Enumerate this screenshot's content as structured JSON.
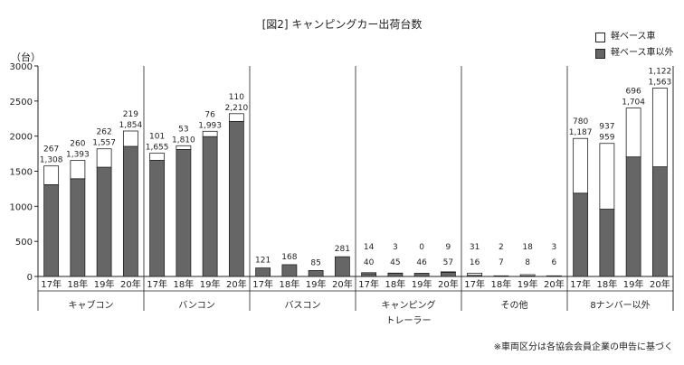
{
  "chart_data": {
    "type": "bar",
    "stacked": true,
    "title": "[図2] キャンピングカー出荷台数",
    "unit_label": "（台）",
    "ylim": [
      0,
      3000
    ],
    "yticks": [
      0,
      500,
      1000,
      1500,
      2000,
      2500,
      3000
    ],
    "grid": false,
    "legend_position": "top-right",
    "colors": {
      "kei": "#ffffff",
      "nonkei": "#666666",
      "stroke": "#222222"
    },
    "series": [
      {
        "name": "軽ベース車",
        "color": "#ffffff"
      },
      {
        "name": "軽ベース車以外",
        "color": "#666666"
      }
    ],
    "groups": [
      {
        "name": "キャブコン",
        "years": [
          "17年",
          "18年",
          "19年",
          "20年"
        ],
        "nonkei": [
          1308,
          1393,
          1557,
          1854
        ],
        "kei": [
          267,
          260,
          262,
          219
        ]
      },
      {
        "name": "バンコン",
        "years": [
          "17年",
          "18年",
          "19年",
          "20年"
        ],
        "nonkei": [
          1655,
          1810,
          1993,
          2210
        ],
        "kei": [
          101,
          53,
          76,
          110
        ]
      },
      {
        "name": "バスコン",
        "years": [
          "17年",
          "18年",
          "19年",
          "20年"
        ],
        "nonkei": [
          121,
          168,
          85,
          281
        ],
        "kei": [
          null,
          null,
          null,
          null
        ]
      },
      {
        "name": "キャンピング\nトレーラー",
        "years": [
          "17年",
          "18年",
          "19年",
          "20年"
        ],
        "nonkei": [
          40,
          45,
          46,
          57
        ],
        "kei": [
          14,
          3,
          0,
          9
        ]
      },
      {
        "name": "その他",
        "years": [
          "17年",
          "18年",
          "19年",
          "20年"
        ],
        "nonkei": [
          16,
          7,
          8,
          6
        ],
        "kei": [
          31,
          2,
          18,
          3
        ]
      },
      {
        "name": "8ナンバー以外",
        "years": [
          "17年",
          "18年",
          "19年",
          "20年"
        ],
        "nonkei": [
          1187,
          959,
          1704,
          1563
        ],
        "kei": [
          780,
          937,
          696,
          1122
        ]
      }
    ]
  },
  "note": "※車両区分は各協会会員企業の申告に基づく"
}
